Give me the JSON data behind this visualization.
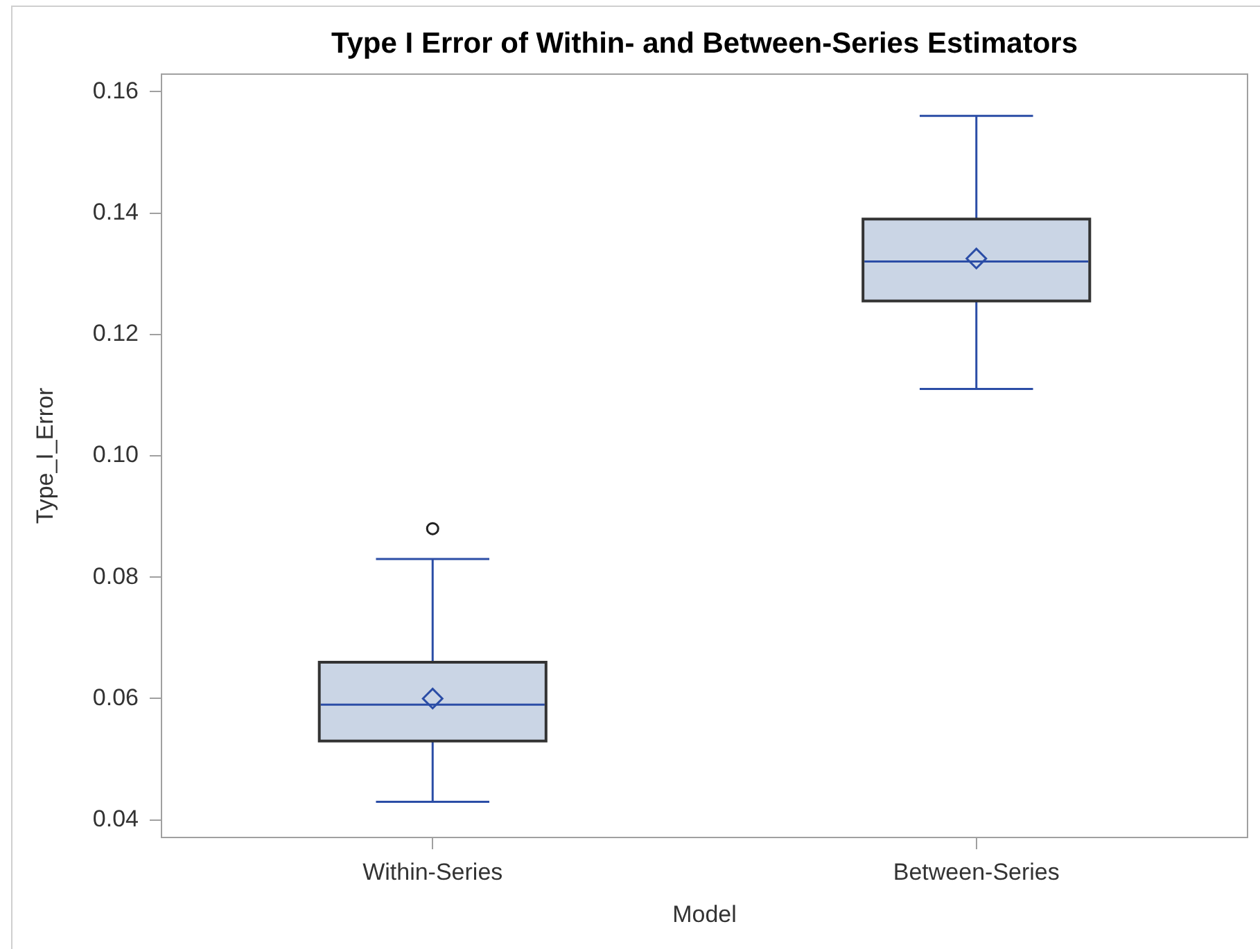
{
  "chart_data": {
    "type": "box",
    "title": "Type I Error of Within- and Between-Series Estimators",
    "xlabel": "Model",
    "ylabel": "Type_I_Error",
    "categories": [
      "Within-Series",
      "Between-Series"
    ],
    "boxes": [
      {
        "low": 0.043,
        "q1": 0.053,
        "median": 0.059,
        "q3": 0.066,
        "high": 0.083,
        "mean": 0.06,
        "outliers": [
          0.088
        ]
      },
      {
        "low": 0.111,
        "q1": 0.1255,
        "median": 0.132,
        "q3": 0.139,
        "high": 0.156,
        "mean": 0.1325
      }
    ],
    "color": "#cad5e5",
    "ylim": [
      0.037,
      0.163
    ],
    "yticks": [
      0.04,
      0.06,
      0.08,
      {
        "value": 0.1,
        "label": "0.10"
      },
      0.12,
      0.14,
      0.16
    ],
    "grid": false
  }
}
